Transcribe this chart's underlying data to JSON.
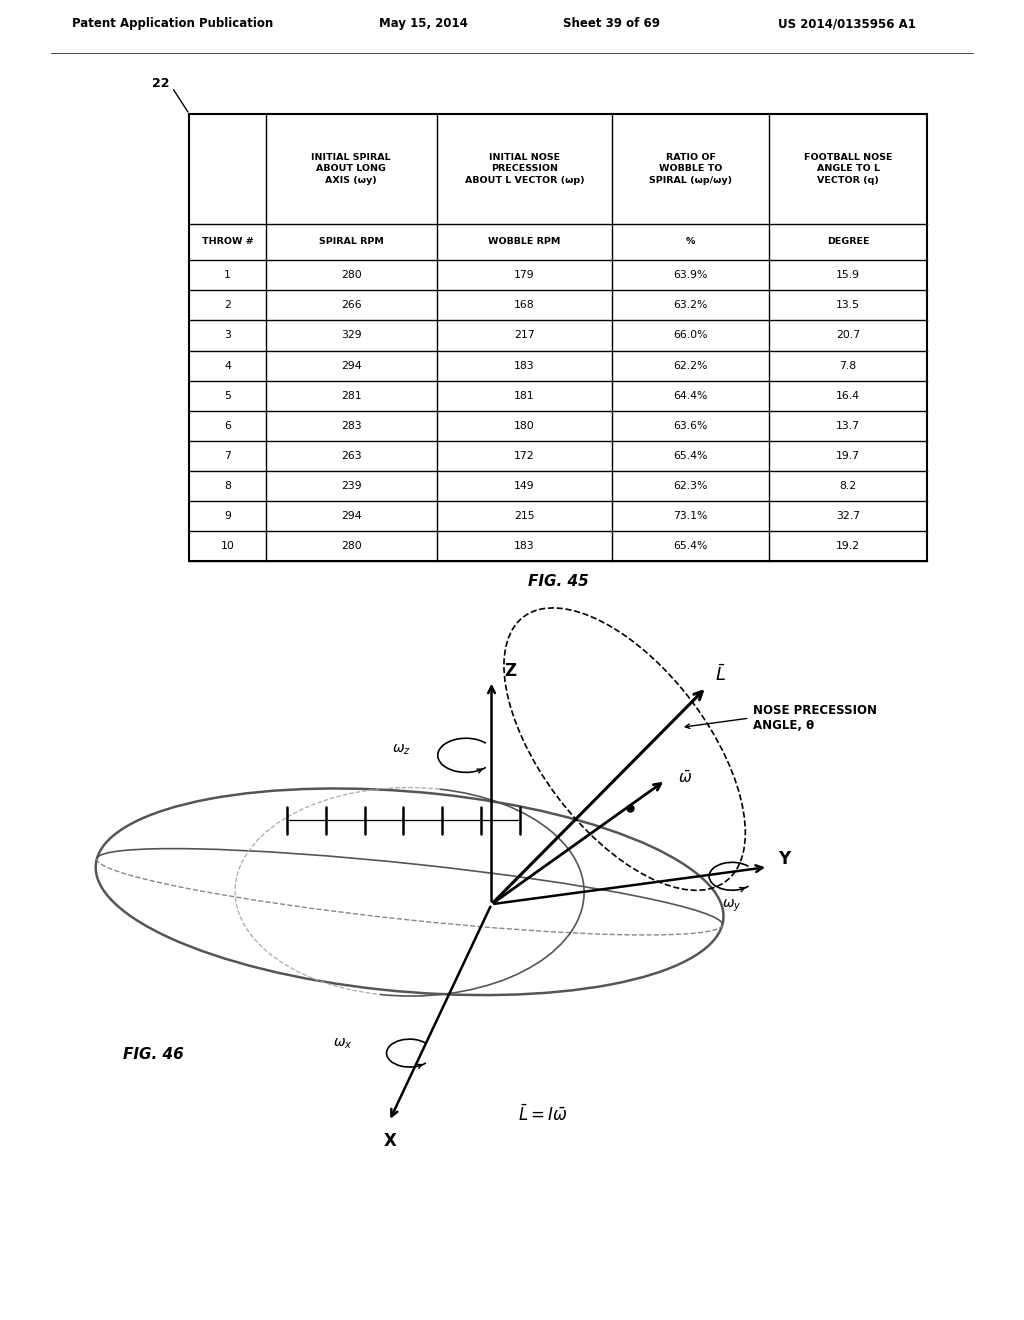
{
  "header_line1": "Patent Application Publication",
  "header_date": "May 15, 2014",
  "header_sheet": "Sheet 39 of 69",
  "header_patent": "US 2014/0135956 A1",
  "fig45_label": "FIG. 45",
  "fig46_label": "FIG. 46",
  "table_label": "22",
  "col_headers_row1": [
    "",
    "INITIAL SPIRAL\nABOUT LONG\nAXIS (ωy)",
    "INITIAL NOSE\nPRECESSION\nABOUT L VECTOR (ωp)",
    "RATIO OF\nWOBBLE TO\nSPIRAL (ωp/ωy)",
    "FOOTBALL NOSE\nANGLE TO L\nVECTOR (q)"
  ],
  "col_headers_row2": [
    "THROW #",
    "SPIRAL RPM",
    "WOBBLE RPM",
    "%",
    "DEGREE"
  ],
  "rows": [
    [
      "1",
      "280",
      "179",
      "63.9%",
      "15.9"
    ],
    [
      "2",
      "266",
      "168",
      "63.2%",
      "13.5"
    ],
    [
      "3",
      "329",
      "217",
      "66.0%",
      "20.7"
    ],
    [
      "4",
      "294",
      "183",
      "62.2%",
      "7.8"
    ],
    [
      "5",
      "281",
      "181",
      "64.4%",
      "16.4"
    ],
    [
      "6",
      "283",
      "180",
      "63.6%",
      "13.7"
    ],
    [
      "7",
      "263",
      "172",
      "65.4%",
      "19.7"
    ],
    [
      "8",
      "239",
      "149",
      "62.3%",
      "8.2"
    ],
    [
      "9",
      "294",
      "215",
      "73.1%",
      "32.7"
    ],
    [
      "10",
      "280",
      "183",
      "65.4%",
      "19.2"
    ]
  ],
  "bg_color": "#ffffff",
  "text_color": "#000000"
}
